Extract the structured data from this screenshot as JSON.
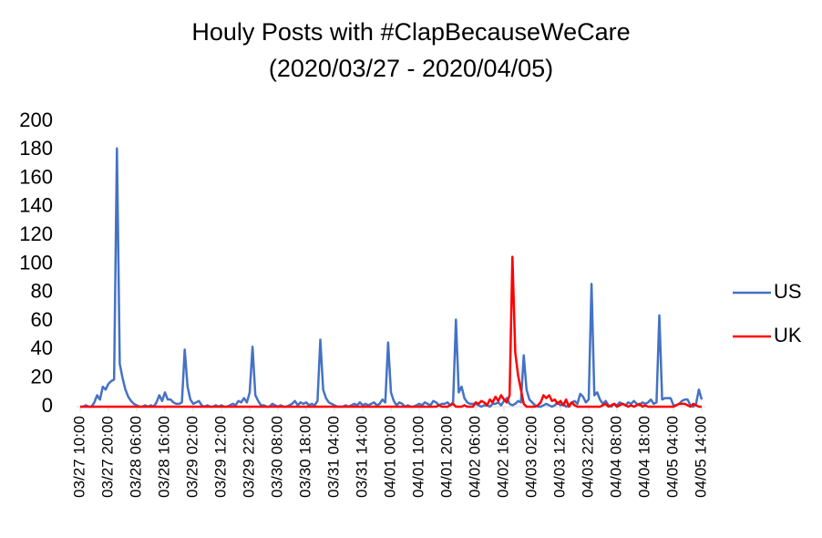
{
  "chart_data": {
    "type": "line",
    "title": "Houly Posts with #ClapBecauseWeCare",
    "subtitle": "(2020/03/27 - 2020/04/05)",
    "categories": [
      "03/27 10:00",
      null,
      null,
      null,
      null,
      null,
      null,
      null,
      null,
      null,
      "03/27 20:00",
      null,
      null,
      null,
      null,
      null,
      null,
      null,
      null,
      null,
      "03/28 06:00",
      null,
      null,
      null,
      null,
      null,
      null,
      null,
      null,
      null,
      "03/28 16:00",
      null,
      null,
      null,
      null,
      null,
      null,
      null,
      null,
      null,
      "03/29 02:00",
      null,
      null,
      null,
      null,
      null,
      null,
      null,
      null,
      null,
      "03/29 12:00",
      null,
      null,
      null,
      null,
      null,
      null,
      null,
      null,
      null,
      "03/29 22:00",
      null,
      null,
      null,
      null,
      null,
      null,
      null,
      null,
      null,
      "03/30 08:00",
      null,
      null,
      null,
      null,
      null,
      null,
      null,
      null,
      null,
      "03/30 18:00",
      null,
      null,
      null,
      null,
      null,
      null,
      null,
      null,
      null,
      "03/31 04:00",
      null,
      null,
      null,
      null,
      null,
      null,
      null,
      null,
      null,
      "03/31 14:00",
      null,
      null,
      null,
      null,
      null,
      null,
      null,
      null,
      null,
      "04/01 00:00",
      null,
      null,
      null,
      null,
      null,
      null,
      null,
      null,
      null,
      "04/01 10:00",
      null,
      null,
      null,
      null,
      null,
      null,
      null,
      null,
      null,
      "04/01 20:00",
      null,
      null,
      null,
      null,
      null,
      null,
      null,
      null,
      null,
      "04/02 06:00",
      null,
      null,
      null,
      null,
      null,
      null,
      null,
      null,
      null,
      "04/02 16:00",
      null,
      null,
      null,
      null,
      null,
      null,
      null,
      null,
      null,
      "04/03 02:00",
      null,
      null,
      null,
      null,
      null,
      null,
      null,
      null,
      null,
      "04/03 12:00",
      null,
      null,
      null,
      null,
      null,
      null,
      null,
      null,
      null,
      "04/03 22:00",
      null,
      null,
      null,
      null,
      null,
      null,
      null,
      null,
      null,
      "04/04 08:00",
      null,
      null,
      null,
      null,
      null,
      null,
      null,
      null,
      null,
      "04/04 18:00",
      null,
      null,
      null,
      null,
      null,
      null,
      null,
      null,
      null,
      "04/05 04:00",
      null,
      null,
      null,
      null,
      null,
      null,
      null,
      null,
      null,
      "04/05 14:00"
    ],
    "series": [
      {
        "name": "US",
        "color": "#4472c4",
        "values": [
          0,
          0,
          1,
          0,
          0,
          3,
          8,
          5,
          14,
          12,
          16,
          18,
          19,
          181,
          30,
          20,
          12,
          7,
          4,
          2,
          1,
          0,
          0,
          1,
          0,
          1,
          0,
          3,
          8,
          4,
          10,
          5,
          5,
          3,
          2,
          2,
          3,
          40,
          14,
          5,
          2,
          3,
          4,
          1,
          0,
          1,
          0,
          0,
          1,
          0,
          1,
          0,
          0,
          1,
          2,
          1,
          4,
          3,
          6,
          3,
          10,
          42,
          8,
          4,
          1,
          1,
          0,
          0,
          2,
          1,
          0,
          1,
          0,
          0,
          1,
          2,
          4,
          1,
          3,
          2,
          3,
          1,
          2,
          1,
          4,
          47,
          12,
          6,
          3,
          2,
          1,
          0,
          0,
          0,
          1,
          0,
          1,
          2,
          1,
          3,
          1,
          2,
          1,
          2,
          3,
          1,
          2,
          5,
          3,
          45,
          10,
          4,
          1,
          3,
          2,
          0,
          1,
          0,
          0,
          1,
          2,
          1,
          3,
          2,
          1,
          4,
          3,
          1,
          2,
          2,
          3,
          1,
          3,
          61,
          10,
          14,
          6,
          3,
          2,
          2,
          2,
          1,
          0,
          1,
          1,
          0,
          2,
          2,
          3,
          1,
          4,
          6,
          2,
          1,
          2,
          4,
          3,
          36,
          12,
          5,
          3,
          1,
          0,
          0,
          1,
          2,
          1,
          0,
          1,
          3,
          1,
          2,
          0,
          1,
          3,
          4,
          2,
          9,
          7,
          3,
          5,
          86,
          8,
          10,
          5,
          2,
          4,
          1,
          0,
          2,
          1,
          3,
          2,
          1,
          3,
          2,
          4,
          2,
          1,
          3,
          2,
          3,
          5,
          2,
          3,
          64,
          5,
          6,
          6,
          6,
          1,
          1,
          2,
          4,
          5,
          5,
          1,
          0,
          2,
          12,
          5
        ]
      },
      {
        "name": "UK",
        "color": "#ff0000",
        "values": [
          0,
          0,
          0,
          0,
          0,
          0,
          0,
          0,
          0,
          0,
          0,
          0,
          0,
          0,
          0,
          0,
          0,
          0,
          0,
          0,
          0,
          0,
          0,
          0,
          0,
          0,
          0,
          0,
          0,
          0,
          0,
          0,
          0,
          0,
          0,
          0,
          0,
          0,
          0,
          0,
          0,
          0,
          0,
          0,
          0,
          0,
          0,
          0,
          0,
          0,
          0,
          0,
          0,
          0,
          0,
          0,
          0,
          0,
          0,
          0,
          0,
          0,
          0,
          0,
          0,
          0,
          0,
          0,
          0,
          0,
          0,
          0,
          0,
          0,
          0,
          0,
          0,
          0,
          0,
          0,
          0,
          0,
          0,
          0,
          0,
          0,
          0,
          0,
          0,
          0,
          0,
          0,
          0,
          0,
          0,
          0,
          0,
          0,
          0,
          0,
          0,
          0,
          0,
          0,
          0,
          0,
          0,
          0,
          0,
          0,
          0,
          0,
          0,
          0,
          0,
          0,
          0,
          0,
          0,
          0,
          0,
          0,
          0,
          0,
          0,
          0,
          0,
          1,
          0,
          0,
          0,
          1,
          2,
          0,
          0,
          0,
          1,
          0,
          0,
          0,
          3,
          2,
          4,
          3,
          1,
          5,
          3,
          7,
          4,
          8,
          5,
          3,
          8,
          105,
          38,
          22,
          12,
          2,
          0,
          0,
          0,
          0,
          1,
          3,
          8,
          6,
          8,
          4,
          5,
          2,
          4,
          1,
          5,
          0,
          3,
          1,
          0,
          0,
          0,
          0,
          0,
          0,
          0,
          0,
          0,
          1,
          2,
          0,
          1,
          2,
          0,
          1,
          2,
          1,
          0,
          1,
          0,
          1,
          2,
          0,
          1,
          0,
          0,
          0,
          0,
          0,
          0,
          0,
          0,
          0,
          0,
          1,
          2,
          2,
          2,
          1,
          0,
          2,
          1,
          0,
          0
        ]
      }
    ],
    "ylim": [
      0,
      200
    ],
    "yticks": [
      0,
      20,
      40,
      60,
      80,
      100,
      120,
      140,
      160,
      180,
      200
    ],
    "grid": false,
    "legend": "right"
  }
}
